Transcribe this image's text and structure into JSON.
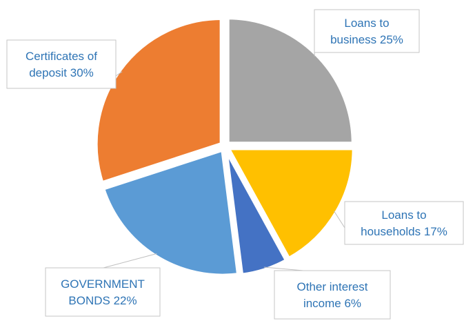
{
  "chart_data": {
    "type": "pie",
    "title": "",
    "slices": [
      {
        "label": "Loans to business 25%",
        "lines": [
          "Loans to",
          "business 25%"
        ],
        "value": 25,
        "color": "#a5a5a5"
      },
      {
        "label": "Loans to households 17%",
        "lines": [
          "Loans to",
          "households 17%"
        ],
        "value": 17,
        "color": "#ffc000"
      },
      {
        "label": "Other interest income 6%",
        "lines": [
          "Other interest",
          "income 6%"
        ],
        "value": 6,
        "color": "#4472c4"
      },
      {
        "label": "GOVERNMENT BONDS 22%",
        "lines": [
          "GOVERNMENT",
          "BONDS 22%"
        ],
        "value": 22,
        "color": "#5b9bd5"
      },
      {
        "label": "Certificates of deposit 30%",
        "lines": [
          "Certificates of",
          "deposit 30%"
        ],
        "value": 30,
        "color": "#ed7d31"
      }
    ],
    "label_style": "callout",
    "exploded": true
  }
}
